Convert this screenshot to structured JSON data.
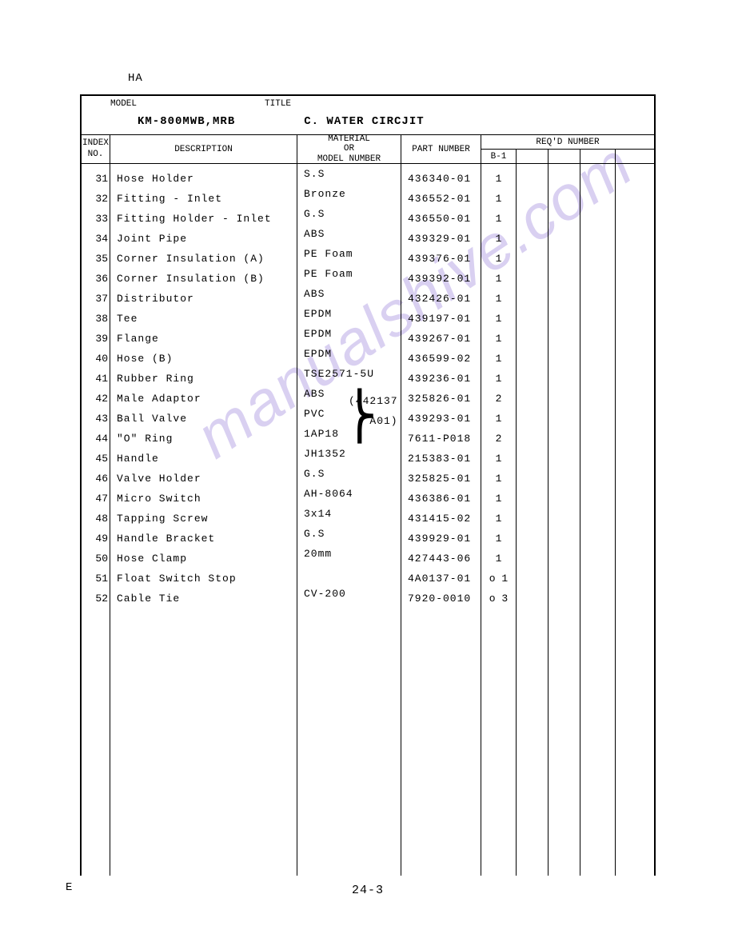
{
  "top_label": "HA",
  "side_label": "E",
  "header": {
    "model_label": "MODEL",
    "title_label": "TITLE",
    "model_value": "KM-800MWB,MRB",
    "title_value": "C. WATER CIRCJIT"
  },
  "columns": {
    "index_l1": "INDEX",
    "index_l2": "NO.",
    "description": "DESCRIPTION",
    "material_l1": "MATERIAL",
    "material_l2": "OR",
    "material_l3": "MODEL  NUMBER",
    "part_number": "PART NUMBER",
    "reqd_number": "REQ'D  NUMBER",
    "b1": "B-1"
  },
  "material_annotation": {
    "line1": "(442137",
    "line2": "A01)"
  },
  "rows": [
    {
      "idx": "31",
      "desc": "Hose Holder",
      "mat": "S.S",
      "part": "436340-01",
      "b1": "1"
    },
    {
      "idx": "32",
      "desc": "Fitting - Inlet",
      "mat": "Bronze",
      "part": "436552-01",
      "b1": "1"
    },
    {
      "idx": "33",
      "desc": "Fitting Holder - Inlet",
      "mat": "G.S",
      "part": "436550-01",
      "b1": "1"
    },
    {
      "idx": "34",
      "desc": "Joint Pipe",
      "mat": "ABS",
      "part": "439329-01",
      "b1": "1"
    },
    {
      "idx": "35",
      "desc": "Corner Insulation (A)",
      "mat": "PE Foam",
      "part": "439376-01",
      "b1": "1"
    },
    {
      "idx": "36",
      "desc": "Corner Insulation (B)",
      "mat": "PE Foam",
      "part": "439392-01",
      "b1": "1"
    },
    {
      "idx": "37",
      "desc": "Distributor",
      "mat": "ABS",
      "part": "432426-01",
      "b1": "1"
    },
    {
      "idx": "38",
      "desc": "Tee",
      "mat": "EPDM",
      "part": "439197-01",
      "b1": "1"
    },
    {
      "idx": "39",
      "desc": "Flange",
      "mat": "EPDM",
      "part": "439267-01",
      "b1": "1"
    },
    {
      "idx": "40",
      "desc": "Hose (B)",
      "mat": "EPDM",
      "part": "436599-02",
      "b1": "1"
    },
    {
      "idx": "41",
      "desc": "Rubber Ring",
      "mat": "TSE2571-5U",
      "part": "439236-01",
      "b1": "1"
    },
    {
      "idx": "42",
      "desc": "Male Adaptor",
      "mat": "ABS",
      "part": "325826-01",
      "b1": "2"
    },
    {
      "idx": "43",
      "desc": "Ball Valve",
      "mat": "PVC",
      "part": "439293-01",
      "b1": "1"
    },
    {
      "idx": "44",
      "desc": "\"O\" Ring",
      "mat": "1AP18",
      "part": "7611-P018",
      "b1": "2"
    },
    {
      "idx": "45",
      "desc": "Handle",
      "mat": "JH1352",
      "part": "215383-01",
      "b1": "1"
    },
    {
      "idx": "46",
      "desc": "Valve Holder",
      "mat": "G.S",
      "part": "325825-01",
      "b1": "1"
    },
    {
      "idx": "47",
      "desc": "Micro Switch",
      "mat": "AH-8064",
      "part": "436386-01",
      "b1": "1"
    },
    {
      "idx": "48",
      "desc": "Tapping Screw",
      "mat": "3x14",
      "part": "431415-02",
      "b1": "1"
    },
    {
      "idx": "49",
      "desc": "Handle Bracket",
      "mat": "G.S",
      "part": "439929-01",
      "b1": "1"
    },
    {
      "idx": "50",
      "desc": "Hose Clamp",
      "mat": "20mm",
      "part": "427443-06",
      "b1": "1"
    },
    {
      "idx": "51",
      "desc": "Float Switch Stop",
      "mat": "",
      "part": "4A0137-01",
      "b1": "o 1"
    },
    {
      "idx": "52",
      "desc": "Cable Tie",
      "mat": "CV-200",
      "part": "7920-0010",
      "b1": "o 3"
    }
  ],
  "page_number": "24-3",
  "watermark": "manualshive.com"
}
